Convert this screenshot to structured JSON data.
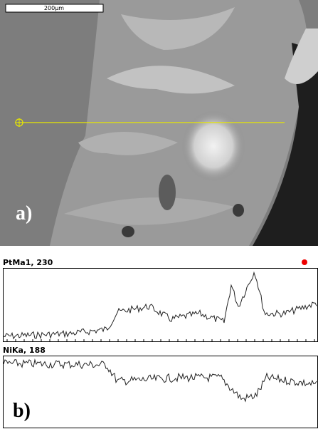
{
  "image": {
    "scale_bar": "200µm",
    "label": "a)"
  },
  "profiles": [
    {
      "label": "PtMa1, 230"
    },
    {
      "label": "NiKa, 188"
    }
  ],
  "panel_b_label": "b)"
}
